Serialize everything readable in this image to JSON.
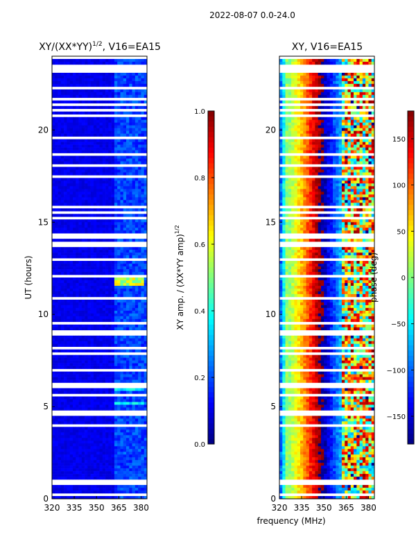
{
  "page_title": "2022-08-07 0.0-24.0",
  "xlabel_shared": "frequency (MHz)",
  "chart_data": [
    {
      "type": "heatmap",
      "title": "XY/(XX*YY)",
      "title_suffix": ", V16=EA15",
      "title_superscript": "1/2",
      "ylabel": "UT (hours)",
      "xlim": [
        320,
        384
      ],
      "ylim": [
        0,
        24
      ],
      "xticks": [
        320,
        335,
        350,
        365,
        380
      ],
      "yticks": [
        0,
        5,
        10,
        15,
        20
      ],
      "colorbar": {
        "label": "XY amp. / (XX*YY amp)",
        "label_superscript": "1/2",
        "range": [
          0.0,
          1.0
        ],
        "ticks": [
          "0.0",
          "0.2",
          "0.4",
          "0.6",
          "0.8",
          "1.0"
        ],
        "colormap": "jet"
      },
      "bright_patches": [
        {
          "freq": [
            363,
            381
          ],
          "ut": [
            11.6,
            12.2
          ],
          "value": 0.55
        },
        {
          "freq": [
            363,
            381
          ],
          "ut": [
            5.8,
            5.95
          ],
          "value": 0.35
        },
        {
          "freq": [
            363,
            381
          ],
          "ut": [
            5.1,
            5.25
          ],
          "value": 0.35
        }
      ]
    },
    {
      "type": "heatmap",
      "title": "XY, V16=EA15",
      "xlim": [
        320,
        384
      ],
      "ylim": [
        0,
        24
      ],
      "xticks": [
        320,
        335,
        350,
        365,
        380
      ],
      "yticks": [
        0,
        5,
        10,
        15,
        20
      ],
      "colorbar": {
        "label": "phase (deg)",
        "range": [
          -180,
          180
        ],
        "ticks": [
          "−150",
          "−100",
          "−50",
          "0",
          "50",
          "100",
          "150"
        ],
        "colormap": "jet"
      },
      "phase_bands": [
        {
          "freq_center": 334,
          "phase": 60
        },
        {
          "freq_center": 344,
          "phase": 150
        },
        {
          "freq_center": 352,
          "phase": -150
        }
      ]
    }
  ]
}
